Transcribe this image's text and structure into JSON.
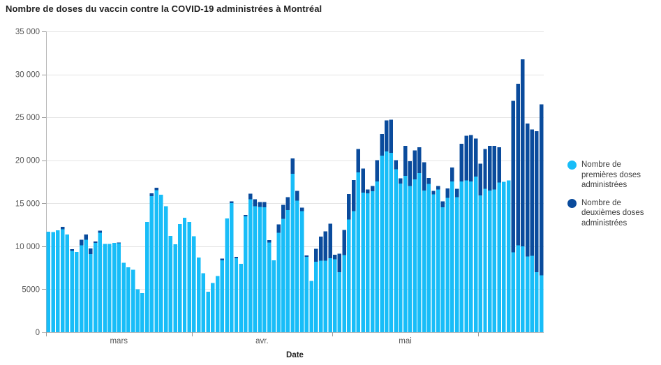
{
  "title": "Nombre de doses du vaccin contre la COVID-19 administrées à Montréal",
  "colors": {
    "first_dose": "#18bdf8",
    "second_dose": "#0a4b9c",
    "grid": "#e4e4e4",
    "axis_line": "#b8b8b8",
    "tick_mark": "#9a9a9a",
    "tick_text": "#565656",
    "title_text": "#222222",
    "legend_text": "#3c3c3c"
  },
  "legend": {
    "items": [
      {
        "label": "Nombre de premières doses administrées",
        "color_key": "first_dose"
      },
      {
        "label": "Nombre de deuxièmes doses administrées",
        "color_key": "second_dose"
      }
    ]
  },
  "chart_data": {
    "type": "bar",
    "stacked": true,
    "title": "Nombre de doses du vaccin contre la COVID-19 administrées à Montréal",
    "xlabel": "Date",
    "ylabel": "",
    "ylim": [
      0,
      35000
    ],
    "grid": true,
    "legend_position": "right",
    "x_start": "2021-03-01",
    "x_end": "2021-06-14",
    "x_frequency": "daily",
    "y_ticks": [
      {
        "value": 0,
        "label": "0"
      },
      {
        "value": 5000,
        "label": "5000"
      },
      {
        "value": 10000,
        "label": "10 000"
      },
      {
        "value": 15000,
        "label": "15 000"
      },
      {
        "value": 20000,
        "label": "20 000"
      },
      {
        "value": 25000,
        "label": "25 000"
      },
      {
        "value": 30000,
        "label": "30 000"
      },
      {
        "value": 35000,
        "label": "35 000"
      }
    ],
    "x_ticks": [
      {
        "index": 0,
        "label": "mars"
      },
      {
        "index": 31,
        "label": "avr."
      },
      {
        "index": 61,
        "label": "mai"
      },
      {
        "index": 92,
        "label": ""
      }
    ],
    "series": [
      {
        "name": "Nombre de premières doses administrées",
        "color_key": "first_dose",
        "values": [
          11700,
          11660,
          11850,
          11960,
          11370,
          9450,
          9330,
          10100,
          10780,
          9110,
          10380,
          11580,
          10290,
          10290,
          10400,
          10350,
          8080,
          7550,
          7280,
          4990,
          4560,
          12830,
          15840,
          16510,
          15990,
          14650,
          11190,
          10240,
          12600,
          13330,
          12850,
          11180,
          8680,
          6880,
          4730,
          5720,
          6530,
          8360,
          13250,
          15030,
          8620,
          7950,
          13460,
          15480,
          14670,
          14590,
          14540,
          10450,
          8360,
          11590,
          13200,
          14200,
          18440,
          15290,
          14080,
          8760,
          5950,
          8200,
          8330,
          8330,
          8600,
          8470,
          6970,
          8960,
          13110,
          14070,
          18580,
          16250,
          16150,
          16400,
          17550,
          20550,
          21040,
          20870,
          18950,
          17300,
          18200,
          17000,
          17800,
          18500,
          16500,
          17250,
          16040,
          16600,
          14550,
          15640,
          17540,
          15700,
          17540,
          17680,
          17540,
          18090,
          15900,
          16700,
          16500,
          16600,
          17400,
          17500,
          17650,
          9300,
          10100,
          10000,
          8800,
          8900,
          7000,
          6600
        ]
      },
      {
        "name": "Nombre de deuxièmes doses administrées",
        "color_key": "second_dose",
        "values": [
          0,
          0,
          0,
          300,
          0,
          200,
          0,
          680,
          590,
          650,
          160,
          220,
          0,
          0,
          0,
          100,
          0,
          0,
          0,
          0,
          0,
          0,
          320,
          300,
          0,
          0,
          0,
          0,
          0,
          0,
          0,
          0,
          0,
          0,
          0,
          0,
          0,
          190,
          0,
          190,
          140,
          0,
          190,
          620,
          810,
          570,
          620,
          270,
          0,
          940,
          1600,
          1500,
          1780,
          1160,
          400,
          190,
          0,
          1500,
          2790,
          3420,
          4020,
          550,
          2180,
          2920,
          2950,
          3630,
          2720,
          2780,
          450,
          600,
          2450,
          2530,
          3600,
          3850,
          1050,
          600,
          3500,
          2900,
          3350,
          3000,
          3280,
          700,
          410,
          400,
          680,
          1090,
          1640,
          1000,
          4370,
          5190,
          5410,
          4450,
          3700,
          4600,
          5200,
          5100,
          4100,
          0,
          0,
          17600,
          18800,
          21750,
          15500,
          14700,
          16400,
          19900
        ]
      }
    ]
  }
}
